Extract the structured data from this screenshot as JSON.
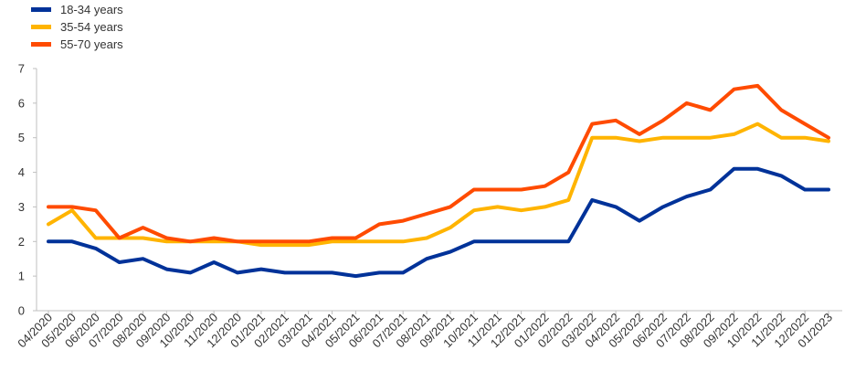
{
  "chart_data": {
    "type": "line",
    "title": "",
    "xlabel": "",
    "ylabel": "",
    "ylim": [
      0,
      7
    ],
    "yticks": [
      0,
      1,
      2,
      3,
      4,
      5,
      6,
      7
    ],
    "grid": "none",
    "legend_position": "top-left",
    "categories": [
      "04/2020",
      "05/2020",
      "06/2020",
      "07/2020",
      "08/2020",
      "09/2020",
      "10/2020",
      "11/2020",
      "12/2020",
      "01/2021",
      "02/2021",
      "03/2021",
      "04/2021",
      "05/2021",
      "06/2021",
      "07/2021",
      "08/2021",
      "09/2021",
      "10/2021",
      "11/2021",
      "12/2021",
      "01/2022",
      "02/2022",
      "03/2022",
      "04/2022",
      "05/2022",
      "06/2022",
      "07/2022",
      "08/2022",
      "09/2022",
      "10/2022",
      "11/2022",
      "12/2022",
      "01/2023"
    ],
    "series": [
      {
        "name": "18-34 years",
        "color": "#003299",
        "values": [
          2.0,
          2.0,
          1.8,
          1.4,
          1.5,
          1.2,
          1.1,
          1.4,
          1.1,
          1.2,
          1.1,
          1.1,
          1.1,
          1.0,
          1.1,
          1.1,
          1.5,
          1.7,
          2.0,
          2.0,
          2.0,
          2.0,
          2.0,
          3.2,
          3.0,
          2.6,
          3.0,
          3.3,
          3.5,
          4.1,
          4.1,
          3.9,
          3.5,
          3.5
        ]
      },
      {
        "name": "35-54 years",
        "color": "#FFB400",
        "values": [
          2.5,
          2.9,
          2.1,
          2.1,
          2.1,
          2.0,
          2.0,
          2.0,
          2.0,
          1.9,
          1.9,
          1.9,
          2.0,
          2.0,
          2.0,
          2.0,
          2.1,
          2.4,
          2.9,
          3.0,
          2.9,
          3.0,
          3.2,
          5.0,
          5.0,
          4.9,
          5.0,
          5.0,
          5.0,
          5.1,
          5.4,
          5.0,
          5.0,
          4.9
        ]
      },
      {
        "name": "55-70 years",
        "color": "#FF4B00",
        "values": [
          3.0,
          3.0,
          2.9,
          2.1,
          2.4,
          2.1,
          2.0,
          2.1,
          2.0,
          2.0,
          2.0,
          2.0,
          2.1,
          2.1,
          2.5,
          2.6,
          2.8,
          3.0,
          3.5,
          3.5,
          3.5,
          3.6,
          4.0,
          5.4,
          5.5,
          5.1,
          5.5,
          6.0,
          5.8,
          6.4,
          6.5,
          5.8,
          5.4,
          5.0
        ]
      }
    ]
  }
}
